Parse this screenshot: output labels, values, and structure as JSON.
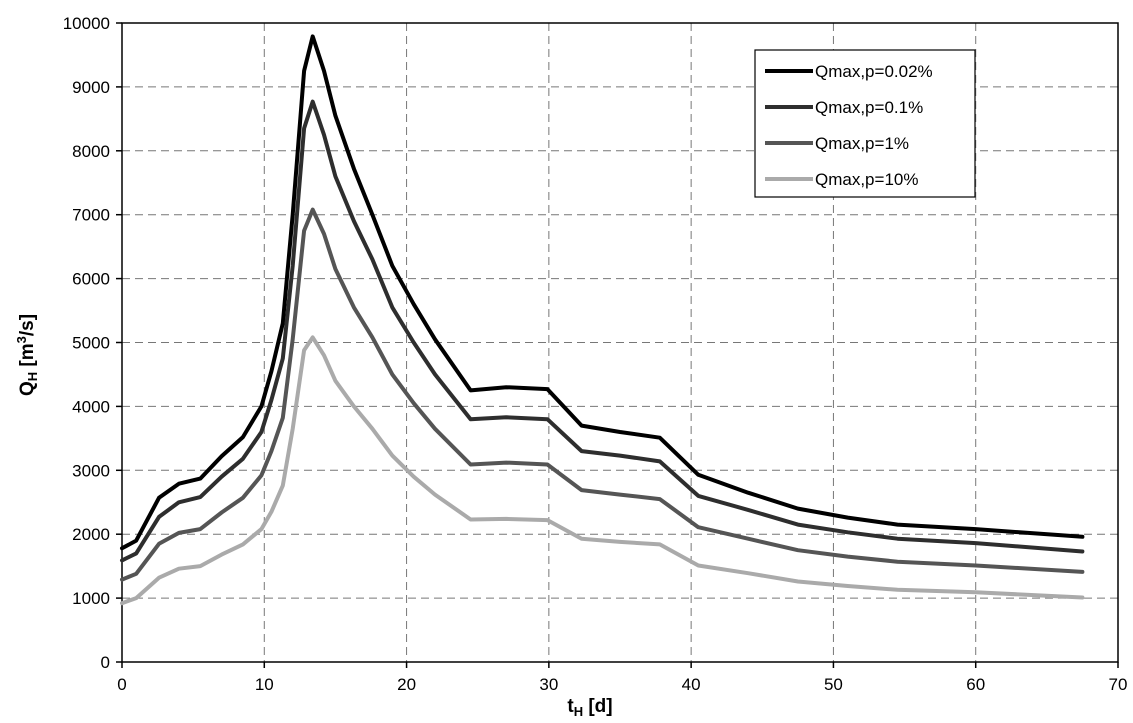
{
  "chart_data": {
    "type": "line",
    "title": "",
    "xlabel": {
      "main": "t",
      "sub": "H",
      "unit": " [d]"
    },
    "ylabel": {
      "main": "Q",
      "sub": "H",
      "unit_pre": " [m",
      "unit_sup": "3",
      "unit_post": "/s]"
    },
    "xlim": [
      0,
      70
    ],
    "ylim": [
      0,
      10000
    ],
    "xticks": [
      0,
      10,
      20,
      30,
      40,
      50,
      60,
      70
    ],
    "xtick_labels": [
      "0",
      "10",
      "20",
      "30",
      "40",
      "50",
      "60",
      "70"
    ],
    "yticks": [
      0,
      1000,
      2000,
      3000,
      4000,
      5000,
      6000,
      7000,
      8000,
      9000,
      10000
    ],
    "ytick_labels": [
      "0",
      "1000",
      "2000",
      "3000",
      "4000",
      "5000",
      "6000",
      "7000",
      "8000",
      "9000",
      "10000"
    ],
    "grid": true,
    "legend_position": "top-right",
    "series": [
      {
        "name": "Qmax,p=0.02%",
        "color": "#000000",
        "points": [
          [
            0,
            1780
          ],
          [
            1,
            1900
          ],
          [
            2.6,
            2570
          ],
          [
            4,
            2790
          ],
          [
            5.5,
            2870
          ],
          [
            7,
            3220
          ],
          [
            8.5,
            3520
          ],
          [
            9.8,
            4000
          ],
          [
            10.5,
            4550
          ],
          [
            11.3,
            5300
          ],
          [
            12,
            7000
          ],
          [
            12.8,
            9250
          ],
          [
            13.4,
            9790
          ],
          [
            14.2,
            9250
          ],
          [
            15,
            8550
          ],
          [
            16.3,
            7720
          ],
          [
            17.6,
            7000
          ],
          [
            19,
            6200
          ],
          [
            20.5,
            5600
          ],
          [
            22,
            5050
          ],
          [
            24.5,
            4250
          ],
          [
            27,
            4300
          ],
          [
            29.9,
            4270
          ],
          [
            32.3,
            3700
          ],
          [
            35,
            3600
          ],
          [
            37.8,
            3510
          ],
          [
            40.5,
            2930
          ],
          [
            44,
            2650
          ],
          [
            47.5,
            2400
          ],
          [
            51,
            2260
          ],
          [
            54.5,
            2150
          ],
          [
            60,
            2080
          ],
          [
            67.5,
            1960
          ]
        ]
      },
      {
        "name": "Qmax,p=0.1%",
        "color": "#2e2e2e",
        "points": [
          [
            0,
            1590
          ],
          [
            1,
            1700
          ],
          [
            2.6,
            2270
          ],
          [
            4,
            2500
          ],
          [
            5.5,
            2580
          ],
          [
            7,
            2900
          ],
          [
            8.5,
            3180
          ],
          [
            9.8,
            3600
          ],
          [
            10.5,
            4100
          ],
          [
            11.3,
            4750
          ],
          [
            12,
            6200
          ],
          [
            12.8,
            8350
          ],
          [
            13.4,
            8770
          ],
          [
            14.2,
            8250
          ],
          [
            15,
            7600
          ],
          [
            16.3,
            6900
          ],
          [
            17.6,
            6300
          ],
          [
            19,
            5550
          ],
          [
            20.5,
            5000
          ],
          [
            22,
            4500
          ],
          [
            24.5,
            3800
          ],
          [
            27,
            3830
          ],
          [
            29.9,
            3800
          ],
          [
            32.3,
            3300
          ],
          [
            35,
            3230
          ],
          [
            37.8,
            3140
          ],
          [
            40.5,
            2600
          ],
          [
            44,
            2380
          ],
          [
            47.5,
            2150
          ],
          [
            51,
            2030
          ],
          [
            54.5,
            1930
          ],
          [
            60,
            1860
          ],
          [
            67.5,
            1730
          ]
        ]
      },
      {
        "name": "Qmax,p=1%",
        "color": "#555555",
        "points": [
          [
            0,
            1290
          ],
          [
            1,
            1380
          ],
          [
            2.6,
            1850
          ],
          [
            4,
            2020
          ],
          [
            5.5,
            2080
          ],
          [
            7,
            2340
          ],
          [
            8.5,
            2570
          ],
          [
            9.8,
            2920
          ],
          [
            10.5,
            3300
          ],
          [
            11.3,
            3820
          ],
          [
            12,
            5050
          ],
          [
            12.8,
            6750
          ],
          [
            13.4,
            7080
          ],
          [
            14.2,
            6700
          ],
          [
            15,
            6150
          ],
          [
            16.3,
            5550
          ],
          [
            17.6,
            5080
          ],
          [
            19,
            4500
          ],
          [
            20.5,
            4050
          ],
          [
            22,
            3650
          ],
          [
            24.5,
            3090
          ],
          [
            27,
            3120
          ],
          [
            29.9,
            3090
          ],
          [
            32.3,
            2690
          ],
          [
            35,
            2620
          ],
          [
            37.8,
            2550
          ],
          [
            40.5,
            2110
          ],
          [
            44,
            1930
          ],
          [
            47.5,
            1750
          ],
          [
            51,
            1650
          ],
          [
            54.5,
            1570
          ],
          [
            60,
            1510
          ],
          [
            67.5,
            1410
          ]
        ]
      },
      {
        "name": "Qmax,p=10%",
        "color": "#aaaaaa",
        "points": [
          [
            0,
            920
          ],
          [
            1,
            1000
          ],
          [
            2.6,
            1320
          ],
          [
            4,
            1460
          ],
          [
            5.5,
            1500
          ],
          [
            7,
            1680
          ],
          [
            8.5,
            1840
          ],
          [
            9.8,
            2080
          ],
          [
            10.5,
            2350
          ],
          [
            11.3,
            2760
          ],
          [
            12,
            3650
          ],
          [
            12.8,
            4880
          ],
          [
            13.4,
            5080
          ],
          [
            14.2,
            4800
          ],
          [
            15,
            4400
          ],
          [
            16.3,
            4000
          ],
          [
            17.6,
            3650
          ],
          [
            19,
            3230
          ],
          [
            20.5,
            2900
          ],
          [
            22,
            2620
          ],
          [
            24.5,
            2230
          ],
          [
            27,
            2240
          ],
          [
            29.9,
            2220
          ],
          [
            32.3,
            1930
          ],
          [
            35,
            1880
          ],
          [
            37.8,
            1840
          ],
          [
            40.5,
            1510
          ],
          [
            44,
            1390
          ],
          [
            47.5,
            1260
          ],
          [
            51,
            1190
          ],
          [
            54.5,
            1130
          ],
          [
            60,
            1090
          ],
          [
            67.5,
            1010
          ]
        ]
      }
    ]
  }
}
